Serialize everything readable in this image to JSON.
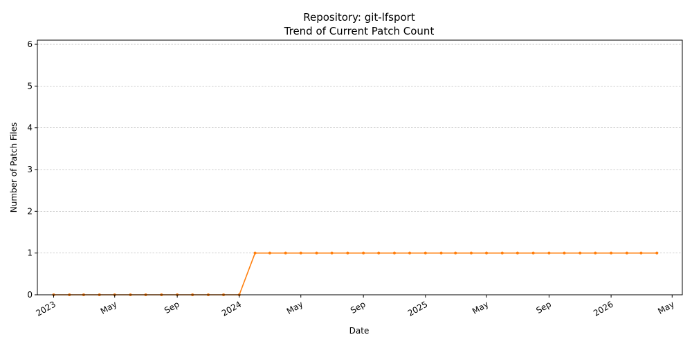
{
  "chart_data": {
    "type": "line",
    "title": "Repository: git-lfsport",
    "subtitle": "Trend of Current Patch Count",
    "xlabel": "Date",
    "ylabel": "Number of Patch Files",
    "ylim": [
      0,
      6.1
    ],
    "xlim": [
      "2022-11-30",
      "2026-05-21"
    ],
    "y_ticks": [
      0,
      1,
      2,
      3,
      4,
      5,
      6
    ],
    "x_ticks": [
      {
        "date": "2023-01-01",
        "label": "2023"
      },
      {
        "date": "2023-05-01",
        "label": "May"
      },
      {
        "date": "2023-09-01",
        "label": "Sep"
      },
      {
        "date": "2024-01-01",
        "label": "2024"
      },
      {
        "date": "2024-05-01",
        "label": "May"
      },
      {
        "date": "2024-09-01",
        "label": "Sep"
      },
      {
        "date": "2025-01-01",
        "label": "2025"
      },
      {
        "date": "2025-05-01",
        "label": "May"
      },
      {
        "date": "2025-09-01",
        "label": "Sep"
      },
      {
        "date": "2026-01-01",
        "label": "2026"
      },
      {
        "date": "2026-05-01",
        "label": "May"
      }
    ],
    "grid": "y-dashed",
    "colors": {
      "line": "#ff7f0e",
      "grid": "#b0b0b0"
    },
    "series": [
      {
        "points": [
          {
            "x": "2023-01-01",
            "y": 0
          },
          {
            "x": "2023-02-01",
            "y": 0
          },
          {
            "x": "2023-03-01",
            "y": 0
          },
          {
            "x": "2023-04-01",
            "y": 0
          },
          {
            "x": "2023-05-01",
            "y": 0
          },
          {
            "x": "2023-06-01",
            "y": 0
          },
          {
            "x": "2023-07-01",
            "y": 0
          },
          {
            "x": "2023-08-01",
            "y": 0
          },
          {
            "x": "2023-09-01",
            "y": 0
          },
          {
            "x": "2023-10-01",
            "y": 0
          },
          {
            "x": "2023-11-01",
            "y": 0
          },
          {
            "x": "2023-12-01",
            "y": 0
          },
          {
            "x": "2024-01-01",
            "y": 0
          },
          {
            "x": "2024-02-01",
            "y": 1
          },
          {
            "x": "2024-03-01",
            "y": 1
          },
          {
            "x": "2024-04-01",
            "y": 1
          },
          {
            "x": "2024-05-01",
            "y": 1
          },
          {
            "x": "2024-06-01",
            "y": 1
          },
          {
            "x": "2024-07-01",
            "y": 1
          },
          {
            "x": "2024-08-01",
            "y": 1
          },
          {
            "x": "2024-09-01",
            "y": 1
          },
          {
            "x": "2024-10-01",
            "y": 1
          },
          {
            "x": "2024-11-01",
            "y": 1
          },
          {
            "x": "2024-12-01",
            "y": 1
          },
          {
            "x": "2025-01-01",
            "y": 1
          },
          {
            "x": "2025-02-01",
            "y": 1
          },
          {
            "x": "2025-03-01",
            "y": 1
          },
          {
            "x": "2025-04-01",
            "y": 1
          },
          {
            "x": "2025-05-01",
            "y": 1
          },
          {
            "x": "2025-06-01",
            "y": 1
          },
          {
            "x": "2025-07-01",
            "y": 1
          },
          {
            "x": "2025-08-01",
            "y": 1
          },
          {
            "x": "2025-09-01",
            "y": 1
          },
          {
            "x": "2025-10-01",
            "y": 1
          },
          {
            "x": "2025-11-01",
            "y": 1
          },
          {
            "x": "2025-12-01",
            "y": 1
          },
          {
            "x": "2026-01-01",
            "y": 1
          },
          {
            "x": "2026-02-01",
            "y": 1
          },
          {
            "x": "2026-03-01",
            "y": 1
          },
          {
            "x": "2026-04-01",
            "y": 1
          }
        ]
      }
    ]
  }
}
